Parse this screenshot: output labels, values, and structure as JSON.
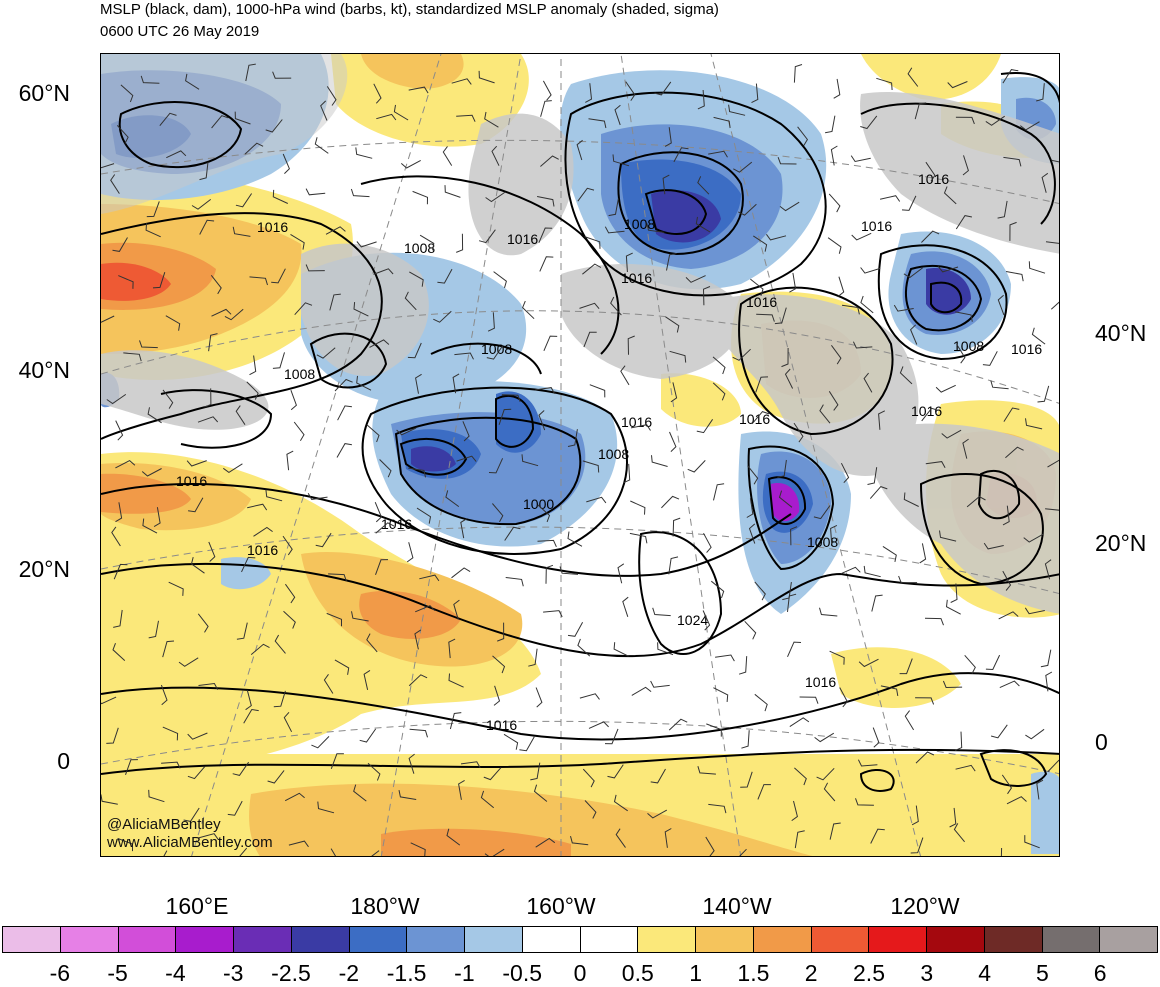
{
  "title_line1": "MSLP (black, dam), 1000-hPa wind (barbs, kt), standardized MSLP anomaly (shaded, sigma)",
  "title_line2": "0600 UTC 26 May 2019",
  "lat_labels_left": [
    "60°N",
    "40°N",
    "20°N",
    "0"
  ],
  "lat_labels_right": [
    "40°N",
    "20°N",
    "0"
  ],
  "lon_labels": [
    "160°E",
    "180°W",
    "160°W",
    "140°W",
    "120°W"
  ],
  "credit_line1": "@AliciaMBentley",
  "credit_line2": "www.AliciaMBentley.com",
  "isobar_labels": [
    "1016",
    "1008",
    "1016",
    "1016",
    "1008",
    "1008",
    "1016",
    "1008",
    "1016",
    "1016",
    "1016",
    "1016",
    "1016",
    "1008",
    "1016",
    "1000",
    "1008",
    "1008",
    "1016",
    "1016",
    "1016",
    "1024",
    "1016",
    "1016"
  ],
  "colorbar": {
    "colors": [
      "#ebbde8",
      "#e680e6",
      "#d24ed9",
      "#a81ccd",
      "#6a2db5",
      "#3a3ba4",
      "#3c6dc4",
      "#6c94d3",
      "#a5c8e6",
      "#ffffff",
      "#ffffff",
      "#fbe87a",
      "#f5c45c",
      "#f19a48",
      "#ee5a34",
      "#e5191b",
      "#a4080e",
      "#6e2a26",
      "#756e6e",
      "#a8a0a0"
    ],
    "labels": [
      "-6",
      "-5",
      "-4",
      "-3",
      "-2.5",
      "-2",
      "-1.5",
      "-1",
      "-0.5",
      "0",
      "0.5",
      "1",
      "1.5",
      "2",
      "2.5",
      "3",
      "4",
      "5",
      "6"
    ]
  },
  "map_colors": {
    "land": "#c8c8c8",
    "coast": "#555555",
    "isobar": "#000000",
    "graticule": "#8a8a8a"
  }
}
